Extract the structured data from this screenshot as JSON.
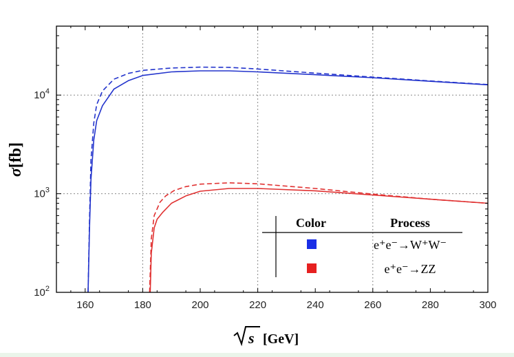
{
  "chart_data": {
    "type": "line",
    "title": "",
    "xlabel": "√s [GeV]",
    "xlabel_parts": {
      "symbol": "s",
      "unit": "[GeV]"
    },
    "ylabel": "σ[fb]",
    "ylabel_parts": {
      "symbol": "σ",
      "unit": "[fb]"
    },
    "xlim": [
      150,
      300
    ],
    "ylim": [
      100,
      50000
    ],
    "yscale": "log",
    "x_ticks": [
      160,
      180,
      200,
      220,
      240,
      260,
      280,
      300
    ],
    "x_tick_labels": [
      "160",
      "180",
      "200",
      "220",
      "240",
      "260",
      "280",
      "300"
    ],
    "y_ticks": [
      {
        "value": 100,
        "base": "10",
        "exp": "2"
      },
      {
        "value": 1000,
        "base": "10",
        "exp": "3"
      },
      {
        "value": 10000,
        "base": "10",
        "exp": "4"
      }
    ],
    "grid": "dotted",
    "grid_x": [
      180,
      220,
      260
    ],
    "grid_y": [
      1000,
      10000
    ],
    "series": [
      {
        "name": "e⁺e⁻→W⁺W⁻ (solid)",
        "color": "#2233cc",
        "style": "solid",
        "x": [
          161.0,
          161.5,
          162,
          163,
          164,
          166,
          170,
          175,
          180,
          190,
          200,
          210,
          220,
          240,
          260,
          280,
          300
        ],
        "y": [
          100,
          450,
          1400,
          3500,
          5500,
          7800,
          11500,
          14000,
          15800,
          17200,
          17600,
          17600,
          17200,
          16100,
          15000,
          13800,
          12700
        ]
      },
      {
        "name": "e⁺e⁻→W⁺W⁻ (dashed)",
        "color": "#2233cc",
        "style": "dashed",
        "x": [
          161.0,
          161.5,
          162,
          163,
          164,
          166,
          170,
          175,
          180,
          190,
          200,
          210,
          220,
          240,
          260,
          280,
          300
        ],
        "y": [
          100,
          550,
          2200,
          5200,
          8000,
          11000,
          14500,
          16600,
          17800,
          18800,
          19200,
          19100,
          18400,
          16700,
          15200,
          13900,
          12800
        ]
      },
      {
        "name": "e⁺e⁻→ZZ (solid)",
        "color": "#e03030",
        "style": "solid",
        "x": [
          182.6,
          183,
          184,
          185,
          187,
          190,
          195,
          200,
          210,
          220,
          240,
          260,
          280,
          300
        ],
        "y": [
          100,
          250,
          450,
          550,
          650,
          800,
          950,
          1060,
          1130,
          1130,
          1070,
          970,
          880,
          800
        ]
      },
      {
        "name": "e⁺e⁻→ZZ (dashed)",
        "color": "#e03030",
        "style": "dashed",
        "x": [
          182.4,
          183,
          184,
          186,
          188,
          191,
          195,
          200,
          210,
          220,
          240,
          260,
          280,
          300
        ],
        "y": [
          100,
          350,
          600,
          820,
          950,
          1080,
          1180,
          1250,
          1290,
          1260,
          1130,
          990,
          880,
          800
        ]
      }
    ],
    "legend": {
      "position": "bottom-right",
      "header_color": "Color",
      "header_process": "Process",
      "entries": [
        {
          "color": "#1a2ee6",
          "label": "e⁺e⁻→W⁺W⁻"
        },
        {
          "color": "#e62020",
          "label": "e⁺e⁻→ZZ"
        }
      ]
    }
  },
  "colors": {
    "axis": "#000000",
    "grid": "#888888",
    "background": "#ffffff"
  }
}
